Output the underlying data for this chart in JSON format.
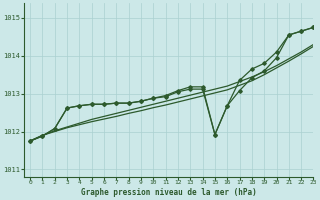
{
  "title": "Graphe pression niveau de la mer (hPa)",
  "background_color": "#cce8e8",
  "grid_color": "#aad0d0",
  "line_color": "#2d5a2d",
  "xlim": [
    -0.5,
    23
  ],
  "ylim": [
    1010.8,
    1015.4
  ],
  "yticks": [
    1011,
    1012,
    1013,
    1014,
    1015
  ],
  "xticks": [
    0,
    1,
    2,
    3,
    4,
    5,
    6,
    7,
    8,
    9,
    10,
    11,
    12,
    13,
    14,
    15,
    16,
    17,
    18,
    19,
    20,
    21,
    22,
    23
  ],
  "x": [
    0,
    1,
    2,
    3,
    4,
    5,
    6,
    7,
    8,
    9,
    10,
    11,
    12,
    13,
    14,
    15,
    16,
    17,
    18,
    19,
    20,
    21,
    22,
    23
  ],
  "smooth1": [
    1011.75,
    1011.9,
    1012.0,
    1012.1,
    1012.18,
    1012.26,
    1012.33,
    1012.4,
    1012.48,
    1012.55,
    1012.63,
    1012.7,
    1012.78,
    1012.86,
    1012.94,
    1013.02,
    1013.1,
    1013.22,
    1013.34,
    1013.5,
    1013.68,
    1013.86,
    1014.05,
    1014.25
  ],
  "smooth2": [
    1011.75,
    1011.9,
    1012.02,
    1012.12,
    1012.22,
    1012.32,
    1012.4,
    1012.48,
    1012.56,
    1012.64,
    1012.72,
    1012.8,
    1012.88,
    1012.96,
    1013.04,
    1013.12,
    1013.2,
    1013.32,
    1013.44,
    1013.58,
    1013.74,
    1013.92,
    1014.1,
    1014.3
  ],
  "volatile1": [
    1011.75,
    1011.88,
    1012.08,
    1012.62,
    1012.68,
    1012.72,
    1012.72,
    1012.75,
    1012.75,
    1012.8,
    1012.88,
    1012.92,
    1013.05,
    1013.12,
    1013.12,
    1011.92,
    1012.68,
    1013.08,
    1013.42,
    1013.6,
    1013.95,
    1014.55,
    1014.65,
    1014.75
  ],
  "volatile2": [
    1011.75,
    1011.88,
    1012.08,
    1012.62,
    1012.68,
    1012.72,
    1012.72,
    1012.75,
    1012.75,
    1012.8,
    1012.88,
    1012.95,
    1013.08,
    1013.18,
    1013.18,
    1011.92,
    1012.68,
    1013.35,
    1013.65,
    1013.8,
    1014.1,
    1014.55,
    1014.65,
    1014.75
  ]
}
